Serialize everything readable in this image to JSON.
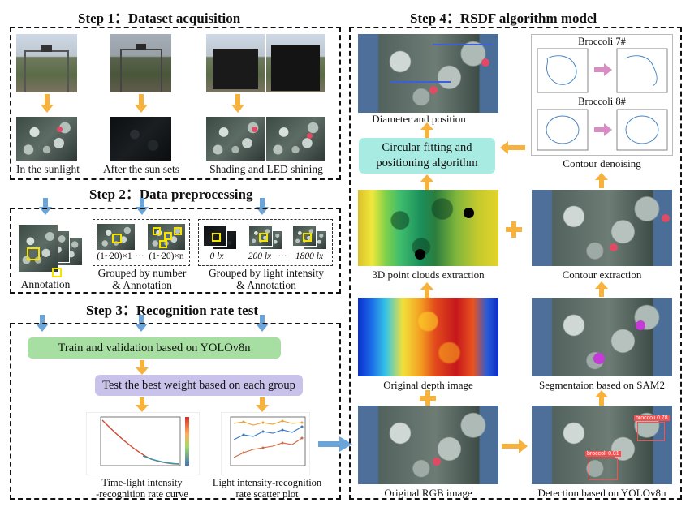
{
  "colors": {
    "orange_arrow": "#f6b23c",
    "blue_arrow": "#6aa4d8",
    "green_box": "#a6dfa1",
    "purple_box": "#c9c3ec",
    "cyan_box": "#a8ebe3",
    "pink_arrow": "#d98dc4"
  },
  "step1": {
    "title": "Step 1：Dataset acquisition",
    "captions": [
      "In the sunlight",
      "After the sun sets",
      "Shading and LED shining"
    ]
  },
  "step2": {
    "title": "Step 2：Data preprocessing",
    "annotation": "Annotation",
    "group_number": {
      "label1": "(1~20)×1",
      "ellipsis": "···",
      "label2": "(1~20)×n",
      "caption_line1": "Grouped by number",
      "caption_line2": "& Annotation"
    },
    "group_light": {
      "label1": "0 lx",
      "label2": "200 lx",
      "ellipsis": "···",
      "label3": "1800 lx",
      "caption_line1": "Grouped by light intensity",
      "caption_line2": "& Annotation"
    }
  },
  "step3": {
    "title": "Step 3：Recognition rate test",
    "train_box": "Train and validation based on YOLOv8n",
    "test_box": "Test the best weight based on each group",
    "plot1_caption_line1": "Time-light intensity",
    "plot1_caption_line2": "-recognition rate curve",
    "plot2_caption_line1": "Light intensity-recognition",
    "plot2_caption_line2": "rate scatter plot"
  },
  "step4": {
    "title": "Step 4：RSDF algorithm model",
    "diameter": "Diameter and position",
    "fitting_line1": "Circular fitting and",
    "fitting_line2": "positioning algorithm",
    "broccoli7": "Broccoli 7#",
    "broccoli8": "Broccoli 8#",
    "denoising": "Contour denoising",
    "point_clouds": "3D point clouds extraction",
    "contour_extraction": "Contour extraction",
    "depth": "Original depth image",
    "segmentation": "Segmentaion based on SAM2",
    "rgb": "Original RGB image",
    "detection": "Detection based on YOLOv8n",
    "det_label1": "broccoli 0.78",
    "det_label2": "broccoli 0.81"
  }
}
